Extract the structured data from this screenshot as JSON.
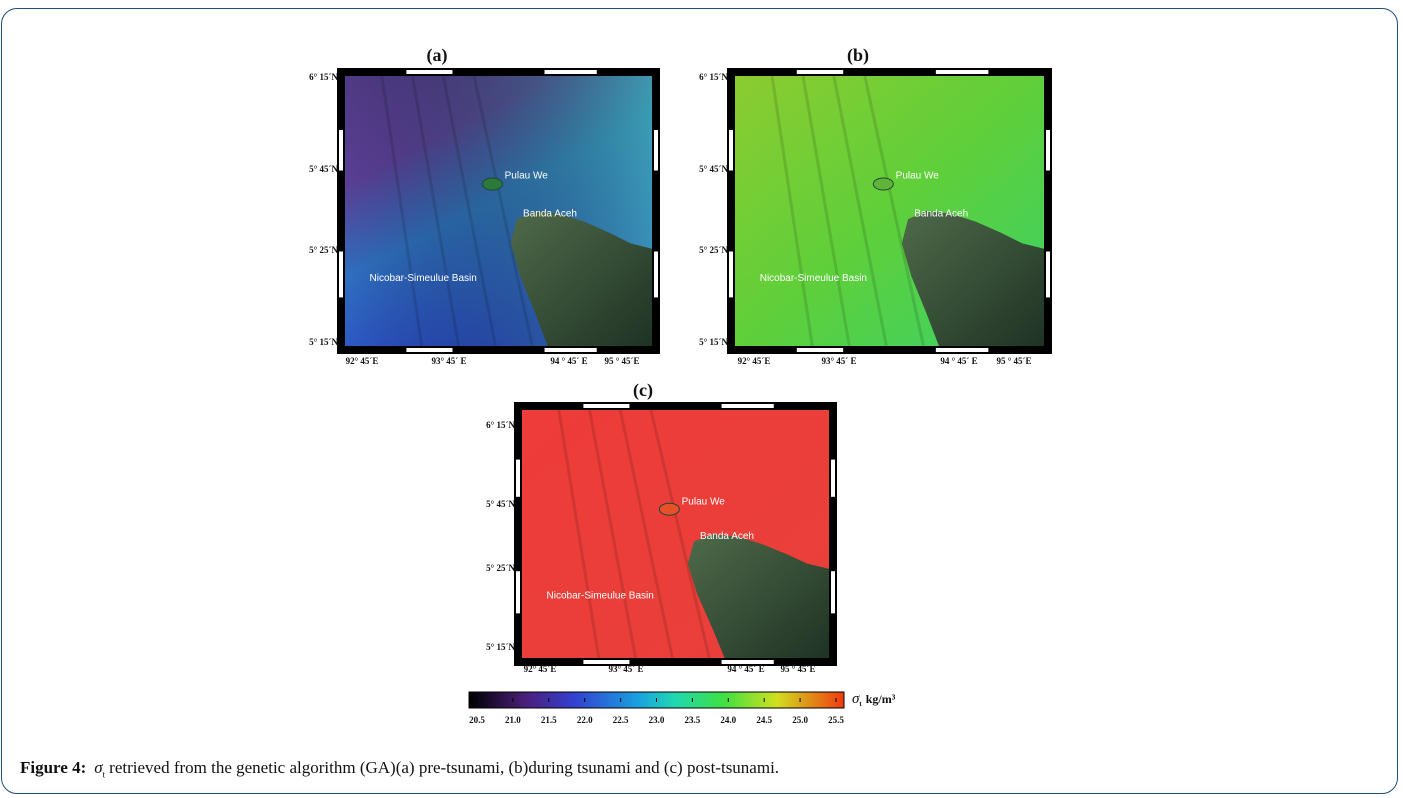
{
  "figure": {
    "panels": [
      {
        "label": "(a)",
        "y_labels": [
          "6° 15´N",
          "5° 45´N",
          "5° 25´N",
          "5° 15´N"
        ],
        "x_labels": [
          "92° 45´E",
          "93° 45´ E",
          "94 ° 45´ E",
          "95 ° 45´E"
        ],
        "places": [
          "Pulau We",
          "Banda Aceh",
          "Nicobar-Simeulue Basin"
        ]
      },
      {
        "label": "(b)",
        "y_labels": [
          "6° 15´N",
          "5° 45´N",
          "5° 25´N",
          "5° 15´N"
        ],
        "x_labels": [
          "92° 45´E",
          "93° 45´ E",
          "94 ° 45´ E",
          "95 ° 45´E"
        ],
        "places": [
          "Pulau We",
          "Banda Aceh",
          "Nicobar-Simeulue Basin"
        ]
      },
      {
        "label": "(c)",
        "y_labels": [
          "6° 15´N",
          "5° 45´N",
          "5° 25´N",
          "5° 15´N"
        ],
        "x_labels": [
          "92° 45´E",
          "93° 45´ E",
          "94 ° 45´ E",
          "95 ° 45´E"
        ],
        "places": [
          "Pulau We",
          "Banda Aceh",
          "Nicobar-Simeulue Basin"
        ]
      }
    ],
    "colorbar": {
      "labels": [
        "20.5",
        "21.0",
        "21.5",
        "22.0",
        "22.5",
        "23.0",
        "23.5",
        "24.0",
        "24.5",
        "25.0",
        "25.5"
      ],
      "unit_symbol": "σ",
      "unit_subscript": "t",
      "unit": "kg/m³"
    }
  },
  "caption": {
    "label": "Figure 4:",
    "symbol": "σ",
    "subscript": "t",
    "text": "retrieved from the genetic algorithm (GA)(a) pre-tsunami, (b)during tsunami and (c) post-tsunami."
  }
}
